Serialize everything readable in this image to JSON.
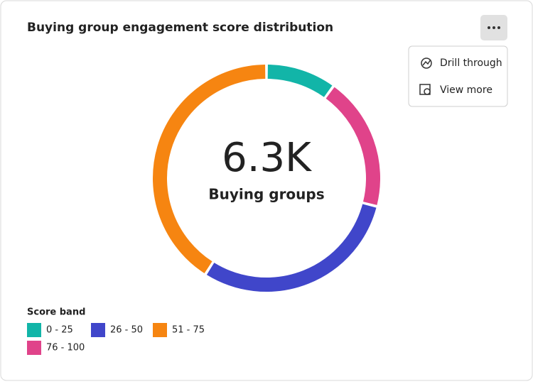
{
  "title": "Buying group engagement score distribution",
  "menu": {
    "items": [
      "Drill through",
      "View more"
    ]
  },
  "chart_data": {
    "type": "donut",
    "center_value": "6.3K",
    "center_label": "Buying groups",
    "legend_title": "Score band",
    "categories": [
      "0 - 25",
      "76 - 100",
      "26 - 50",
      "51 - 75"
    ],
    "values": [
      10,
      19,
      30,
      41
    ],
    "colors": [
      "#12b5a8",
      "#e0438a",
      "#4046ca",
      "#f68511"
    ]
  }
}
